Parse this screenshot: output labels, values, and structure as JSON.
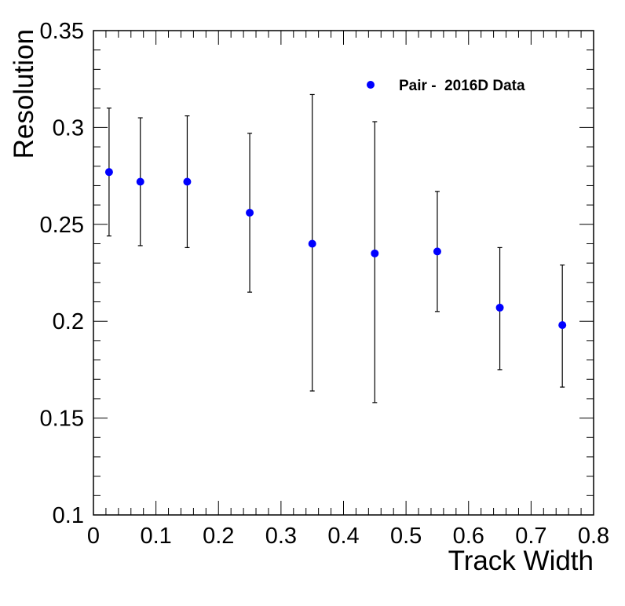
{
  "chart_data": {
    "type": "scatter",
    "title": "",
    "xlabel": "Track Width",
    "ylabel": "Resolution",
    "xlim": [
      0,
      0.8
    ],
    "ylim": [
      0.1,
      0.35
    ],
    "grid": false,
    "legend_position": "top-right",
    "x_ticks": [
      "0",
      "0.1",
      "0.2",
      "0.3",
      "0.4",
      "0.5",
      "0.6",
      "0.7",
      "0.8"
    ],
    "y_ticks": [
      "0.1",
      "0.15",
      "0.2",
      "0.25",
      "0.3",
      "0.35"
    ],
    "series": [
      {
        "name": "Pair -  2016D Data",
        "color": "#0000ff",
        "marker": "circle",
        "points": [
          {
            "x": 0.025,
            "y": 0.277,
            "ylow": 0.244,
            "yhigh": 0.31
          },
          {
            "x": 0.075,
            "y": 0.272,
            "ylow": 0.239,
            "yhigh": 0.305
          },
          {
            "x": 0.15,
            "y": 0.272,
            "ylow": 0.238,
            "yhigh": 0.306
          },
          {
            "x": 0.25,
            "y": 0.256,
            "ylow": 0.215,
            "yhigh": 0.297
          },
          {
            "x": 0.35,
            "y": 0.24,
            "ylow": 0.164,
            "yhigh": 0.317
          },
          {
            "x": 0.45,
            "y": 0.235,
            "ylow": 0.158,
            "yhigh": 0.303
          },
          {
            "x": 0.55,
            "y": 0.236,
            "ylow": 0.205,
            "yhigh": 0.267
          },
          {
            "x": 0.65,
            "y": 0.207,
            "ylow": 0.175,
            "yhigh": 0.238
          },
          {
            "x": 0.75,
            "y": 0.198,
            "ylow": 0.166,
            "yhigh": 0.229
          }
        ]
      }
    ]
  }
}
